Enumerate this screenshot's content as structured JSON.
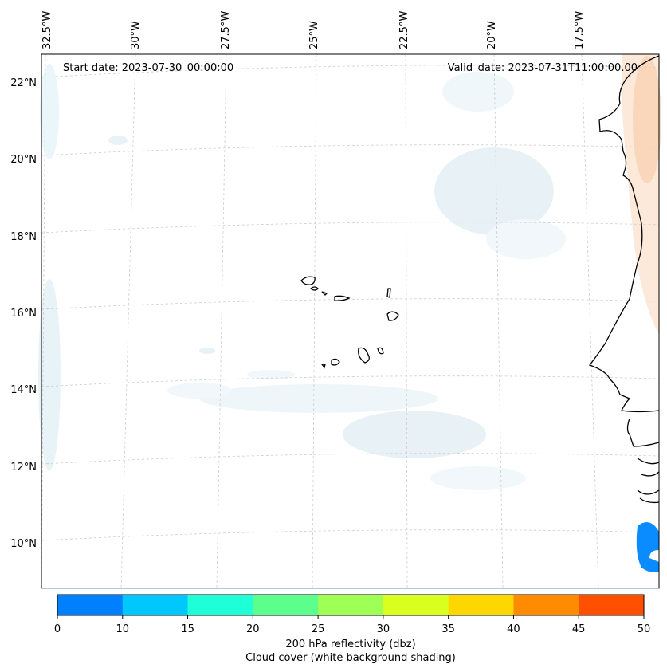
{
  "map": {
    "start_date": "Start date: 2023-07-30_00:00:00",
    "valid_date": "Valid_date: 2023-07-31T11:00:00.00",
    "lon_labels": [
      "32.5°W",
      "30°W",
      "27.5°W",
      "25°W",
      "22.5°W",
      "20°W",
      "17.5°W"
    ],
    "lat_labels": [
      "22°N",
      "20°N",
      "18°N",
      "16°N",
      "14°N",
      "12°N",
      "10°N"
    ],
    "gridlines": true,
    "features": [
      "coastline-west-africa",
      "cape-verde-islands"
    ],
    "shading": {
      "cloud_cover_color": "#d6e9f0",
      "warm_region_color": "#f7c9a2",
      "reflectivity_cell_color": "#0a8cff"
    }
  },
  "colorbar": {
    "ticks": [
      "0",
      "10",
      "15",
      "20",
      "25",
      "30",
      "35",
      "40",
      "45",
      "50"
    ],
    "colors": [
      "#0080ff",
      "#00c8ff",
      "#1effd8",
      "#5cff8c",
      "#9eff55",
      "#d8ff1e",
      "#ffd700",
      "#ff8c00",
      "#ff5000"
    ],
    "label_line1": "200 hPa reflectivity (dbz)",
    "label_line2": "Cloud cover (white background shading)"
  }
}
